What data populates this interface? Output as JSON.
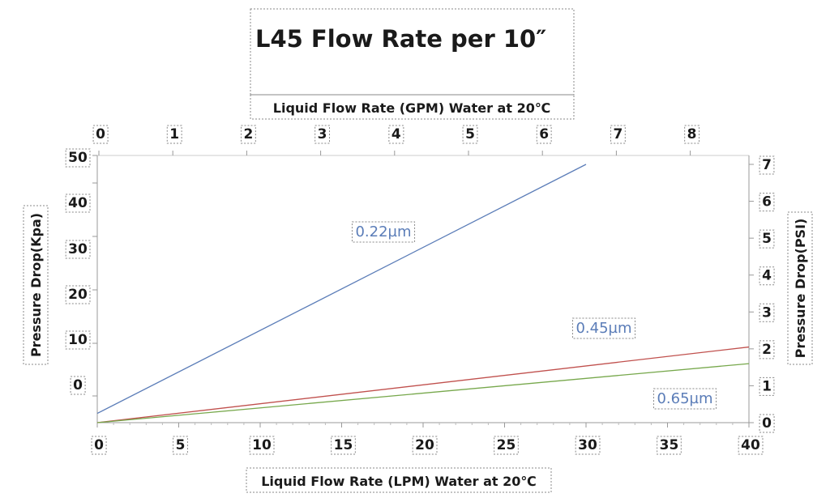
{
  "chart_data": {
    "type": "line",
    "title": "L45 Flow Rate per 10″",
    "x_bottom": {
      "label": "Liquid Flow Rate (LPM) Water at 20℃",
      "ticks": [
        0,
        5,
        10,
        15,
        20,
        25,
        30,
        35,
        40
      ],
      "range": [
        0,
        40
      ]
    },
    "x_top": {
      "label": "Liquid Flow Rate (GPM) Water at 20℃",
      "ticks": [
        0,
        1,
        2,
        3,
        4,
        5,
        6,
        7,
        8
      ]
    },
    "y_left": {
      "label": "Pressure Drop(Kpa)",
      "ticks": [
        0,
        10,
        20,
        30,
        40,
        50
      ]
    },
    "y_right": {
      "label": "Pressure Drop(PSI)",
      "ticks": [
        0,
        1,
        2,
        3,
        4,
        5,
        6,
        7
      ],
      "range": [
        0,
        7
      ]
    },
    "grid": false,
    "series": [
      {
        "name": "0.22µm",
        "color": "#5b7db8",
        "x": [
          0,
          30
        ],
        "y": [
          0.25,
          7.0
        ]
      },
      {
        "name": "0.45µm",
        "color": "#c0504d",
        "x": [
          0,
          40
        ],
        "y": [
          0.0,
          2.05
        ]
      },
      {
        "name": "0.65µm",
        "color": "#77a84c",
        "x": [
          0,
          40
        ],
        "y": [
          0.0,
          1.6
        ]
      }
    ],
    "label_color": "#5b7db8"
  }
}
